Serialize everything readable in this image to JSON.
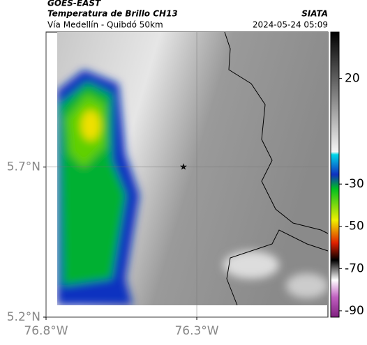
{
  "header": {
    "line1": "GOES-EAST",
    "line2": "Temperatura de Brillo CH13",
    "subtitle": "Vía Medellín - Quibdó 50km",
    "source": "SIATA",
    "datetime": "2024-05-24 05:09"
  },
  "map": {
    "latlim": [
      5.2,
      6.15
    ],
    "lonlim": [
      -76.8,
      -75.865
    ],
    "lat_ticks": [
      {
        "value": 5.7,
        "label": "5.7°N"
      },
      {
        "value": 5.2,
        "label": "5.2°N"
      }
    ],
    "lon_ticks": [
      {
        "value": -76.8,
        "label": "76.8°W"
      },
      {
        "value": -76.3,
        "label": "76.3°W"
      }
    ]
  },
  "colorbar": {
    "lim": [
      42,
      -93
    ],
    "ticks": [
      20,
      -30,
      -50,
      -70,
      -90
    ]
  }
}
